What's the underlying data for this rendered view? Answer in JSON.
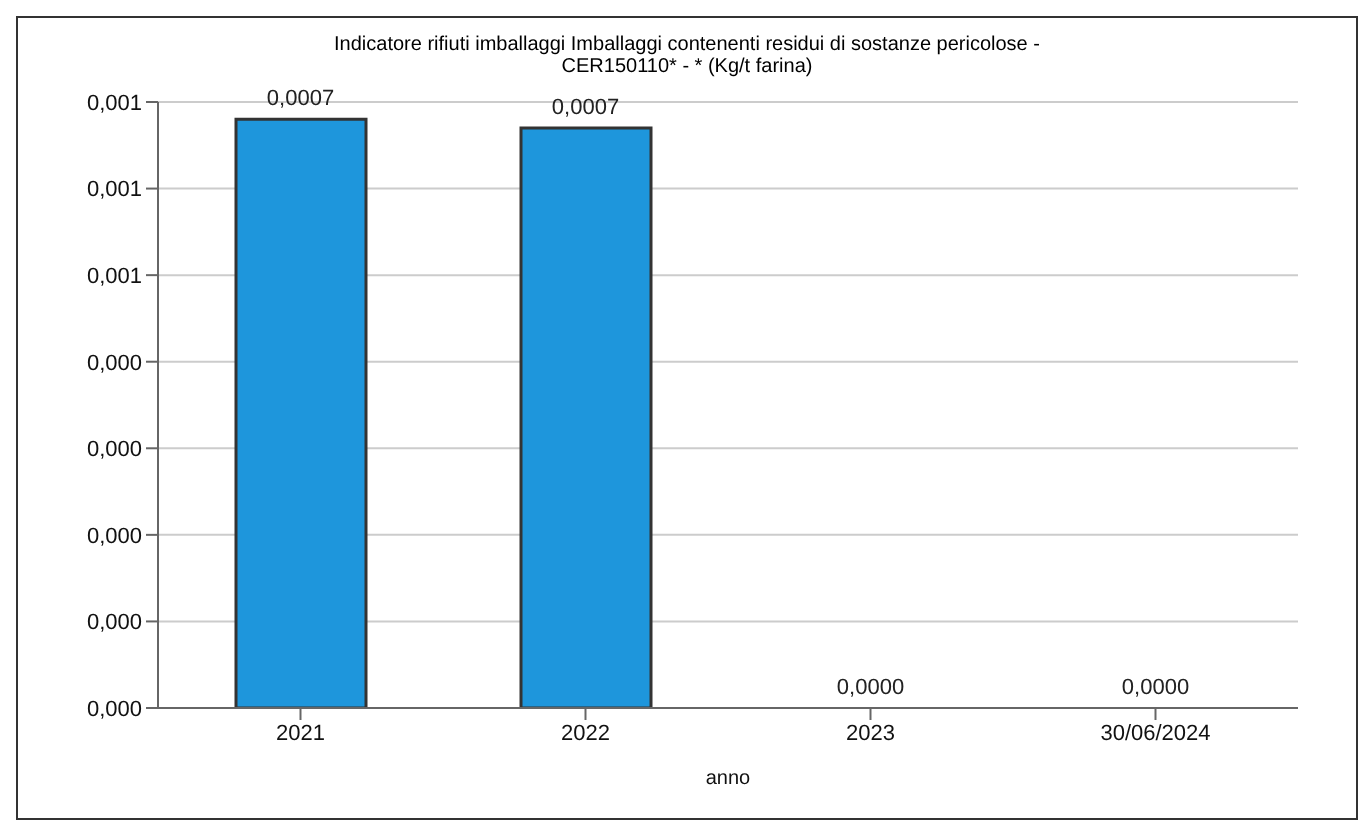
{
  "chart_data": {
    "type": "bar",
    "title": "Indicatore rifiuti imballaggi Imballaggi contenenti residui di sostanze pericolose - CER150110* - * (Kg/t farina)",
    "xlabel": "anno",
    "categories": [
      "2021",
      "2022",
      "2023",
      "30/06/2024"
    ],
    "values": [
      0.00068,
      0.00067,
      0,
      0
    ],
    "value_labels": [
      "0,0007",
      "0,0007",
      "0,0000",
      "0,0000"
    ],
    "color": "#1e96dc",
    "ylim": [
      0,
      0.0007
    ],
    "yticks": [
      {
        "value": 0,
        "label": "0,000"
      },
      {
        "value": 0.0001,
        "label": "0,000"
      },
      {
        "value": 0.0002,
        "label": "0,000"
      },
      {
        "value": 0.0003,
        "label": "0,000"
      },
      {
        "value": 0.0004,
        "label": "0,000"
      },
      {
        "value": 0.0005,
        "label": "0,001"
      },
      {
        "value": 0.0006,
        "label": "0,001"
      },
      {
        "value": 0.0007,
        "label": "0,001"
      }
    ],
    "grid": "y",
    "legend": false
  }
}
